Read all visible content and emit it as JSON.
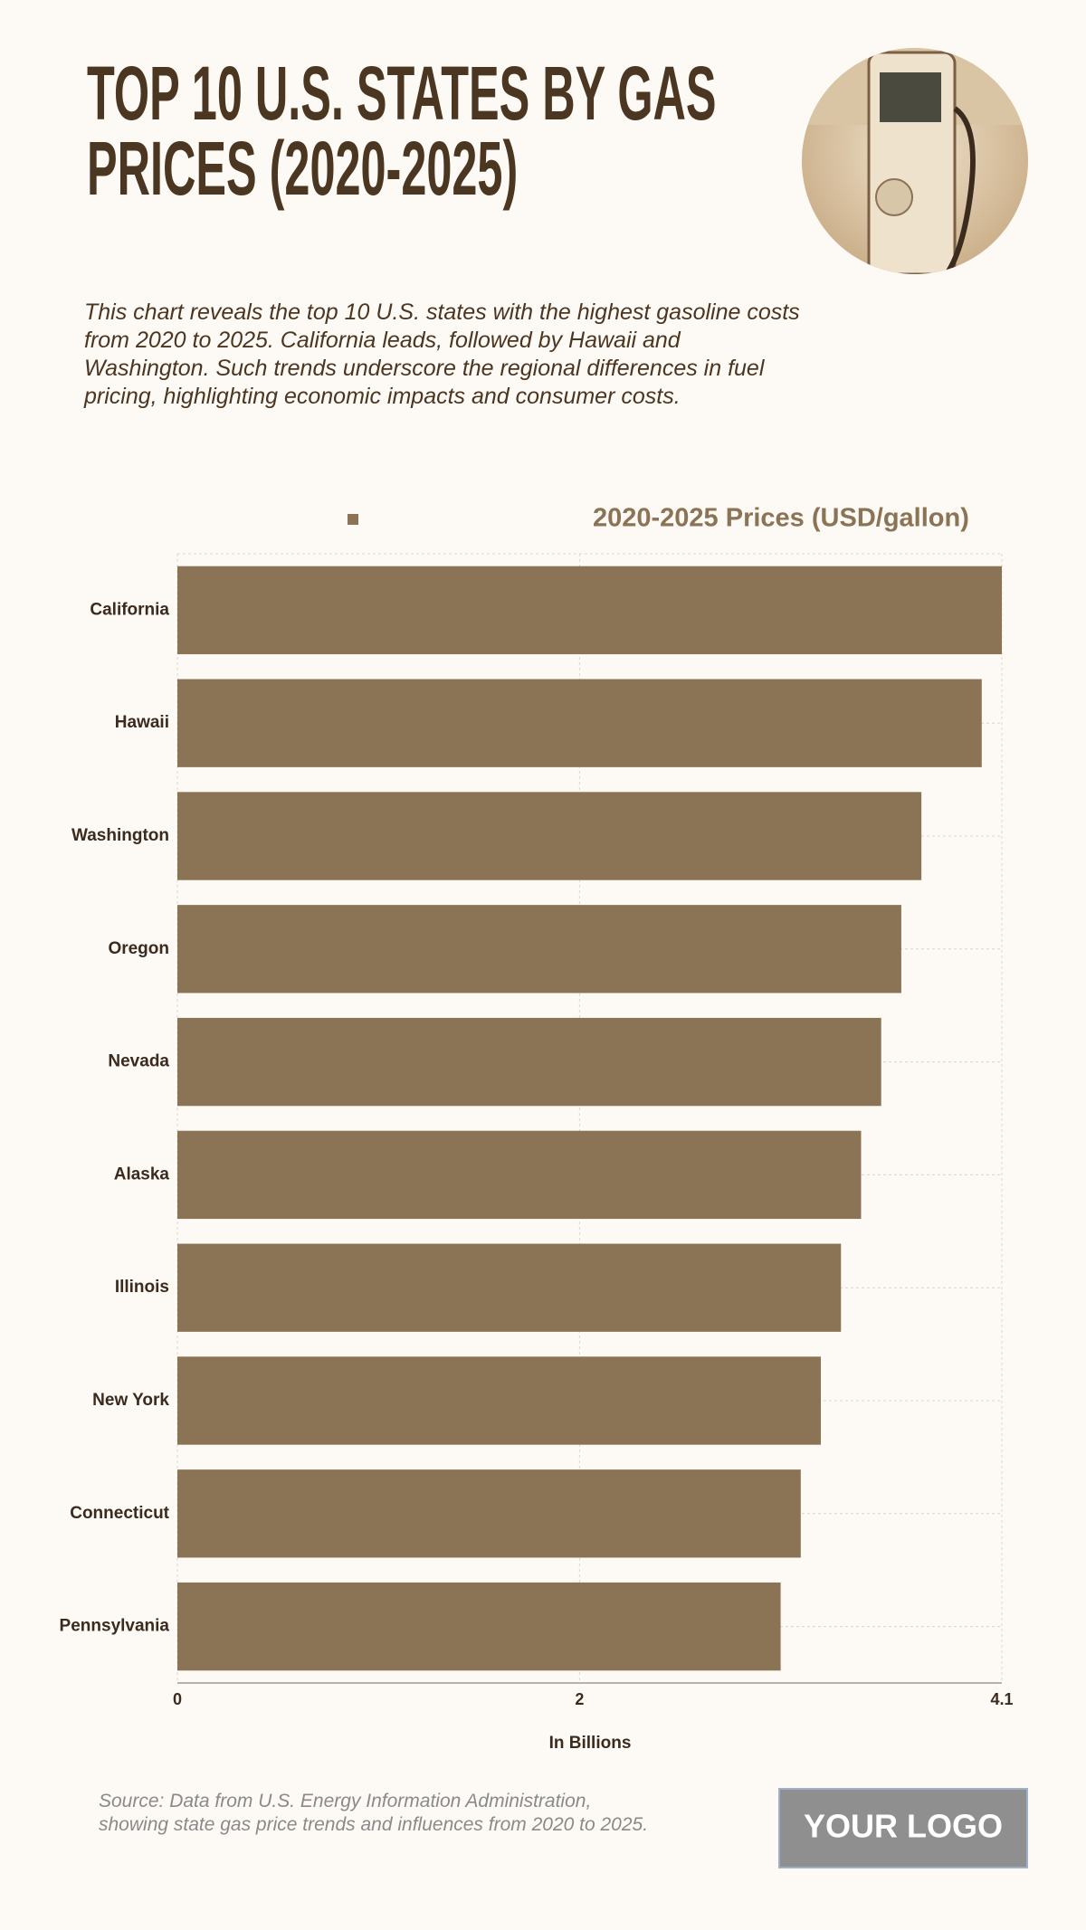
{
  "chart_data": {
    "type": "bar",
    "orientation": "horizontal",
    "title": "TOP 10 U.S. STATES BY GAS PRICES (2020-2025)",
    "subtitle": "This chart reveals the top 10 U.S. states with the highest gasoline costs from 2020 to 2025. California leads, followed by Hawaii and Washington. Such trends underscore the regional differences in fuel pricing, highlighting economic impacts and consumer costs.",
    "categories": [
      "California",
      "Hawaii",
      "Washington",
      "Oregon",
      "Nevada",
      "Alaska",
      "Illinois",
      "New York",
      "Connecticut",
      "Pennsylvania"
    ],
    "series": [
      {
        "name": "2020-2025 Prices (USD/gallon)",
        "color": "#8b7355",
        "values": [
          4.1,
          4.0,
          3.7,
          3.6,
          3.5,
          3.4,
          3.3,
          3.2,
          3.1,
          3.0
        ]
      }
    ],
    "xlabel": "In Billions",
    "xlim": [
      0,
      4.1
    ],
    "xticks": [
      0,
      2,
      4.1
    ],
    "grid": true,
    "legend": "top",
    "source": "Source: Data from U.S. Energy Information Administration, showing state gas price trends and influences from 2020 to 2025."
  },
  "logo": "YOUR LOGO"
}
